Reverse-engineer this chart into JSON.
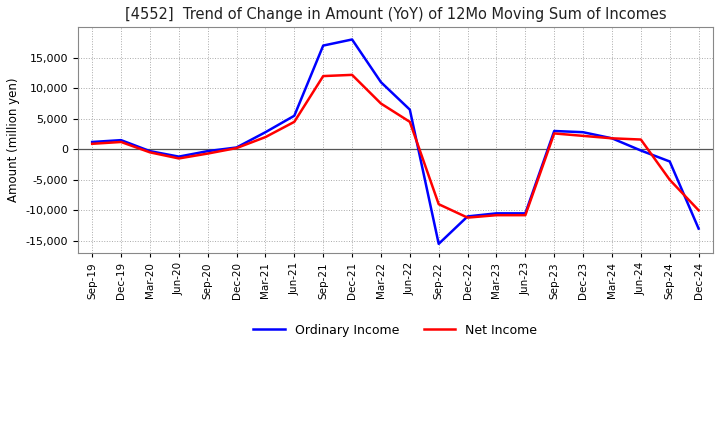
{
  "title": "[4552]  Trend of Change in Amount (YoY) of 12Mo Moving Sum of Incomes",
  "ylabel": "Amount (million yen)",
  "background_color": "#ffffff",
  "grid_color": "#aaaaaa",
  "x_labels": [
    "Sep-19",
    "Dec-19",
    "Mar-20",
    "Jun-20",
    "Sep-20",
    "Dec-20",
    "Mar-21",
    "Jun-21",
    "Sep-21",
    "Dec-21",
    "Mar-22",
    "Jun-22",
    "Sep-22",
    "Dec-22",
    "Mar-23",
    "Jun-23",
    "Sep-23",
    "Dec-23",
    "Mar-24",
    "Jun-24",
    "Sep-24",
    "Dec-24"
  ],
  "ordinary_income": [
    1200,
    1500,
    -300,
    -1200,
    -300,
    300,
    2800,
    5500,
    17000,
    18000,
    11000,
    6500,
    -15500,
    -11000,
    -10500,
    -10500,
    3000,
    2800,
    1800,
    -200,
    -2000,
    -13000
  ],
  "net_income": [
    900,
    1200,
    -500,
    -1500,
    -700,
    200,
    2000,
    4500,
    12000,
    12200,
    7500,
    4500,
    -9000,
    -11200,
    -10800,
    -10800,
    2600,
    2200,
    1800,
    1600,
    -5000,
    -10000
  ],
  "ordinary_color": "#0000ff",
  "net_color": "#ff0000",
  "ylim": [
    -17000,
    20000
  ],
  "yticks": [
    -15000,
    -10000,
    -5000,
    0,
    5000,
    10000,
    15000
  ],
  "line_width": 1.8
}
